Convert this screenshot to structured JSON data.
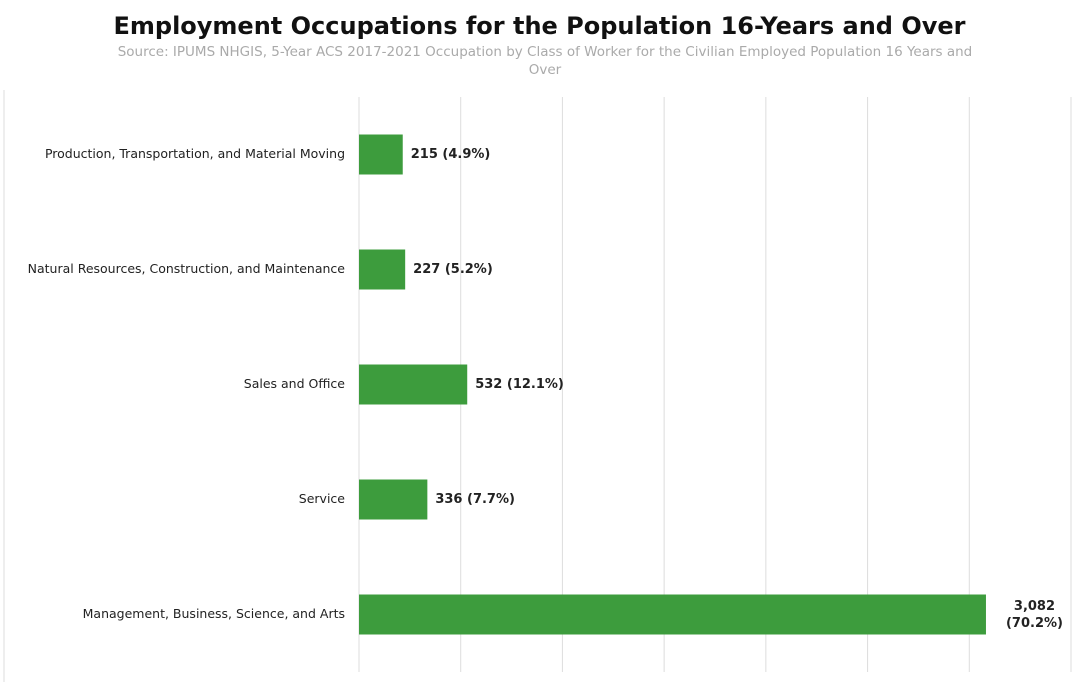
{
  "chart_data": {
    "type": "bar",
    "orientation": "horizontal",
    "title": "Employment Occupations for the Population 16-Years and Over",
    "subtitle": "Source: IPUMS NHGIS, 5-Year ACS 2017-2021 Occupation by Class of Worker for the Civilian Employed Population 16 Years and Over",
    "categories": [
      "Production, Transportation, and Material Moving",
      "Natural Resources, Construction, and Maintenance",
      "Sales and Office",
      "Service",
      "Management, Business, Science, and Arts"
    ],
    "values": [
      215,
      227,
      532,
      336,
      3082
    ],
    "value_labels": [
      "215 (4.9%)",
      "227 (5.2%)",
      "532 (12.1%)",
      "336 (7.7%)",
      "3,082 (70.2%)"
    ],
    "color": "#3d9c3d",
    "xlim": [
      0,
      3500
    ],
    "xticks": [
      0,
      500,
      1000,
      1500,
      2000,
      2500,
      3000,
      3500
    ],
    "grid": true
  }
}
